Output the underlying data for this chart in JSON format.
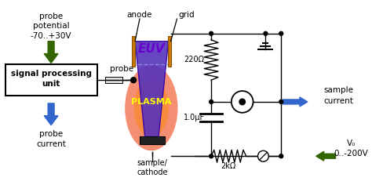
{
  "bg_color": "#ffffff",
  "euv_text_color": "#6600cc",
  "plasma_text_color": "#ffff00",
  "anode_color": "#cc7700",
  "grid_color": "#cc7700",
  "arrow_blue": "#3366cc",
  "arrow_green": "#336600",
  "wire_color": "#000000",
  "euv_trap_color": "#5533aa",
  "plasma_red": "#ee2200",
  "plasma_orange": "#ff8800",
  "sample_rect_color": "#222222",
  "probe_text": "probe",
  "anode_text": "anode",
  "grid_text": "grid",
  "spu_text": "signal processing\nunit",
  "probe_potential_text": "probe\npotential\n-70..+30V",
  "probe_current_text": "probe\ncurrent",
  "sample_cathode_text": "sample/\ncathode",
  "euv_label": "EUV",
  "plasma_label": "PLASMA",
  "r220_label": "220Ω",
  "cap_label": "1.0μF",
  "r2k_label": "2kΩ",
  "sample_current_label": "sample\ncurrent",
  "v0_label": "V₀\n0..-200V"
}
